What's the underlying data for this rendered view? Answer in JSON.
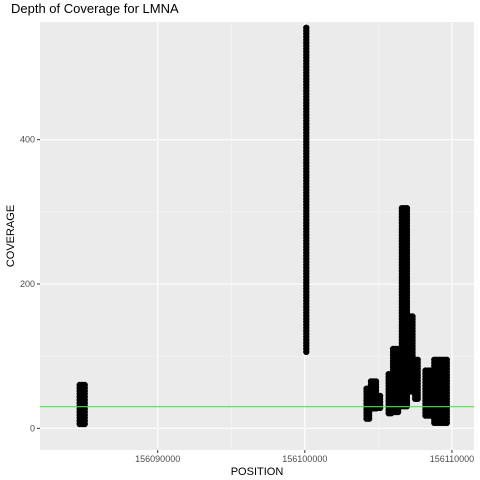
{
  "chart_data": {
    "type": "scatter",
    "title": "Depth of Coverage for LMNA",
    "xlabel": "POSITION",
    "ylabel": "COVERAGE",
    "xlim": [
      156082000,
      156111500
    ],
    "ylim": [
      -30,
      563
    ],
    "xticks": [
      156090000,
      156100000,
      156110000
    ],
    "xtick_labels": [
      "156090000",
      "156100000",
      "156110000"
    ],
    "yticks": [
      0,
      200,
      400
    ],
    "ytick_labels": [
      "0",
      "200",
      "400"
    ],
    "grid": true,
    "reference_line": {
      "y": 30,
      "color": "#4ee44e"
    },
    "point_color": "#000000",
    "clusters": [
      {
        "x_start": 156084700,
        "x_end": 156085200,
        "y_min": 2,
        "y_max": 60
      },
      {
        "x_start": 156100100,
        "x_end": 156100250,
        "y_min": 105,
        "y_max": 555
      },
      {
        "x_start": 156104200,
        "x_end": 156104450,
        "y_min": 10,
        "y_max": 55
      },
      {
        "x_start": 156104500,
        "x_end": 156104900,
        "y_min": 25,
        "y_max": 65
      },
      {
        "x_start": 156104950,
        "x_end": 156105250,
        "y_min": 25,
        "y_max": 45
      },
      {
        "x_start": 156105700,
        "x_end": 156106000,
        "y_min": 20,
        "y_max": 75
      },
      {
        "x_start": 156106000,
        "x_end": 156106400,
        "y_min": 20,
        "y_max": 110
      },
      {
        "x_start": 156106600,
        "x_end": 156106950,
        "y_min": 30,
        "y_max": 305
      },
      {
        "x_start": 156107150,
        "x_end": 156107400,
        "y_min": 50,
        "y_max": 155
      },
      {
        "x_start": 156107500,
        "x_end": 156107750,
        "y_min": 40,
        "y_max": 95
      },
      {
        "x_start": 156108200,
        "x_end": 156108700,
        "y_min": 15,
        "y_max": 80
      },
      {
        "x_start": 156108800,
        "x_end": 156109800,
        "y_min": 5,
        "y_max": 95
      }
    ]
  }
}
